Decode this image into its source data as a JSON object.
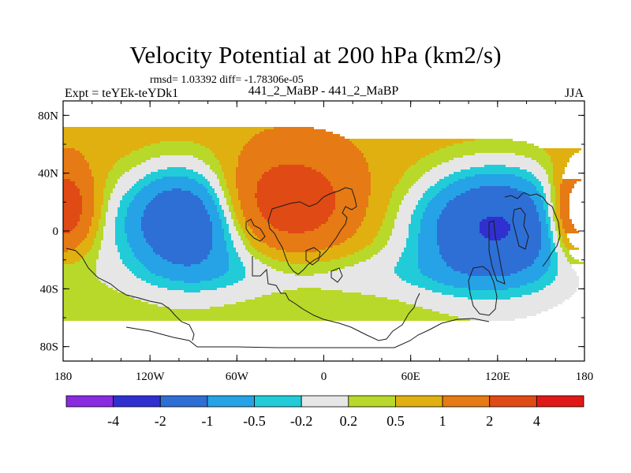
{
  "header": {
    "title": "Velocity Potential at 200 hPa (km2/s)",
    "stats": "rmsd= 1.03392  diff= -1.78306e-05",
    "expt": "Expt = teYEk-teYDk1",
    "case": "441_2_MaBP - 441_2_MaBP",
    "season": "JJA"
  },
  "colors": {
    "background": "#ffffff",
    "axis": "#000000",
    "coastline": "#1a1a1a",
    "levels": [
      "#8a2be2",
      "#3030d0",
      "#2e6fd6",
      "#25a3e6",
      "#21ccd8",
      "#e6e6e6",
      "#b8d92a",
      "#e0b010",
      "#e67a14",
      "#e04a14",
      "#e01818"
    ]
  },
  "chart_data": {
    "type": "heatmap",
    "subtype": "filled-contour map",
    "title": "Velocity Potential at 200 hPa (km2/s)",
    "units": "km2/s",
    "x_axis": {
      "range": [
        -180,
        180
      ],
      "ticks": [
        -180,
        -120,
        -60,
        0,
        60,
        120,
        180
      ],
      "tick_labels": [
        "180",
        "120W",
        "60W",
        "0",
        "60E",
        "120E",
        "180"
      ]
    },
    "y_axis": {
      "range": [
        -90,
        90
      ],
      "ticks": [
        80,
        40,
        0,
        -40,
        -80
      ],
      "tick_labels": [
        "80N",
        "40N",
        "0",
        "40S",
        "80S"
      ]
    },
    "colorbar": {
      "orientation": "horizontal",
      "levels": [
        -4,
        -2,
        -1,
        -0.5,
        -0.2,
        0.2,
        0.5,
        1,
        2,
        4
      ],
      "labels": [
        "-4",
        "-2",
        "-1",
        "-0.5",
        "-0.2",
        "0.2",
        "0.5",
        "1",
        "2",
        "4"
      ],
      "bins": 11
    },
    "features": [
      {
        "lon": -95,
        "lat": 8,
        "peak": -2.7,
        "spread_lon": 48,
        "spread_lat": 40,
        "kind": "minimum"
      },
      {
        "lon": 118,
        "lat": 4,
        "peak": -2.9,
        "spread_lon": 58,
        "spread_lat": 42,
        "kind": "minimum"
      },
      {
        "lon": -28,
        "lat": 20,
        "peak": 2.4,
        "spread_lon": 44,
        "spread_lat": 32,
        "kind": "maximum"
      },
      {
        "lon": 176,
        "lat": 10,
        "peak": 1.6,
        "spread_lon": 20,
        "spread_lat": 28,
        "kind": "maximum"
      },
      {
        "lon": -178,
        "lat": 18,
        "peak": 1.6,
        "spread_lon": 20,
        "spread_lat": 28,
        "kind": "maximum"
      }
    ]
  }
}
